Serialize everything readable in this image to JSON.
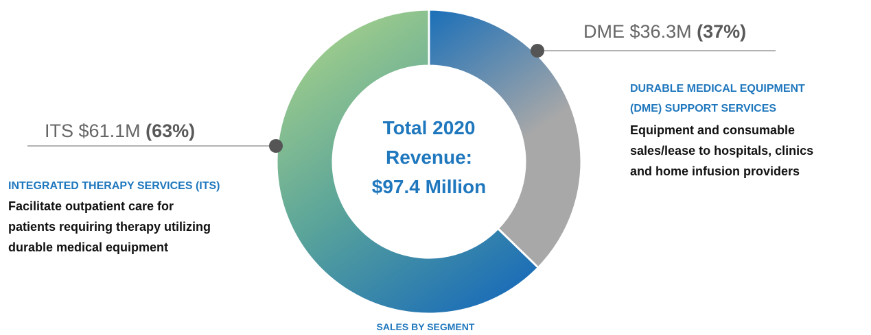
{
  "chart_data": {
    "type": "pie",
    "categories": [
      "DME",
      "ITS"
    ],
    "values": [
      36.3,
      61.1
    ],
    "value_labels": [
      "$36.3M",
      "$61.1M"
    ],
    "percentages": [
      {
        "value": 37,
        "label": "(37%)"
      },
      {
        "value": 63,
        "label": "(63%)"
      }
    ],
    "center_text": [
      "Total 2020",
      "Revenue:",
      "$97.4 Million"
    ],
    "segments": [
      {
        "title_lines": [
          "DURABLE MEDICAL EQUIPMENT",
          "(DME) SUPPORT SERVICES"
        ],
        "description_lines": [
          "Equipment and consumable",
          "sales/lease to hospitals, clinics",
          "and home infusion providers"
        ]
      },
      {
        "title_lines": [
          "INTEGRATED THERAPY SERVICES (ITS)"
        ],
        "description_lines": [
          "Facilitate outpatient care for",
          "patients requiring therapy utilizing",
          "durable medical equipment"
        ]
      }
    ],
    "caption": "SALES BY SEGMENT"
  }
}
